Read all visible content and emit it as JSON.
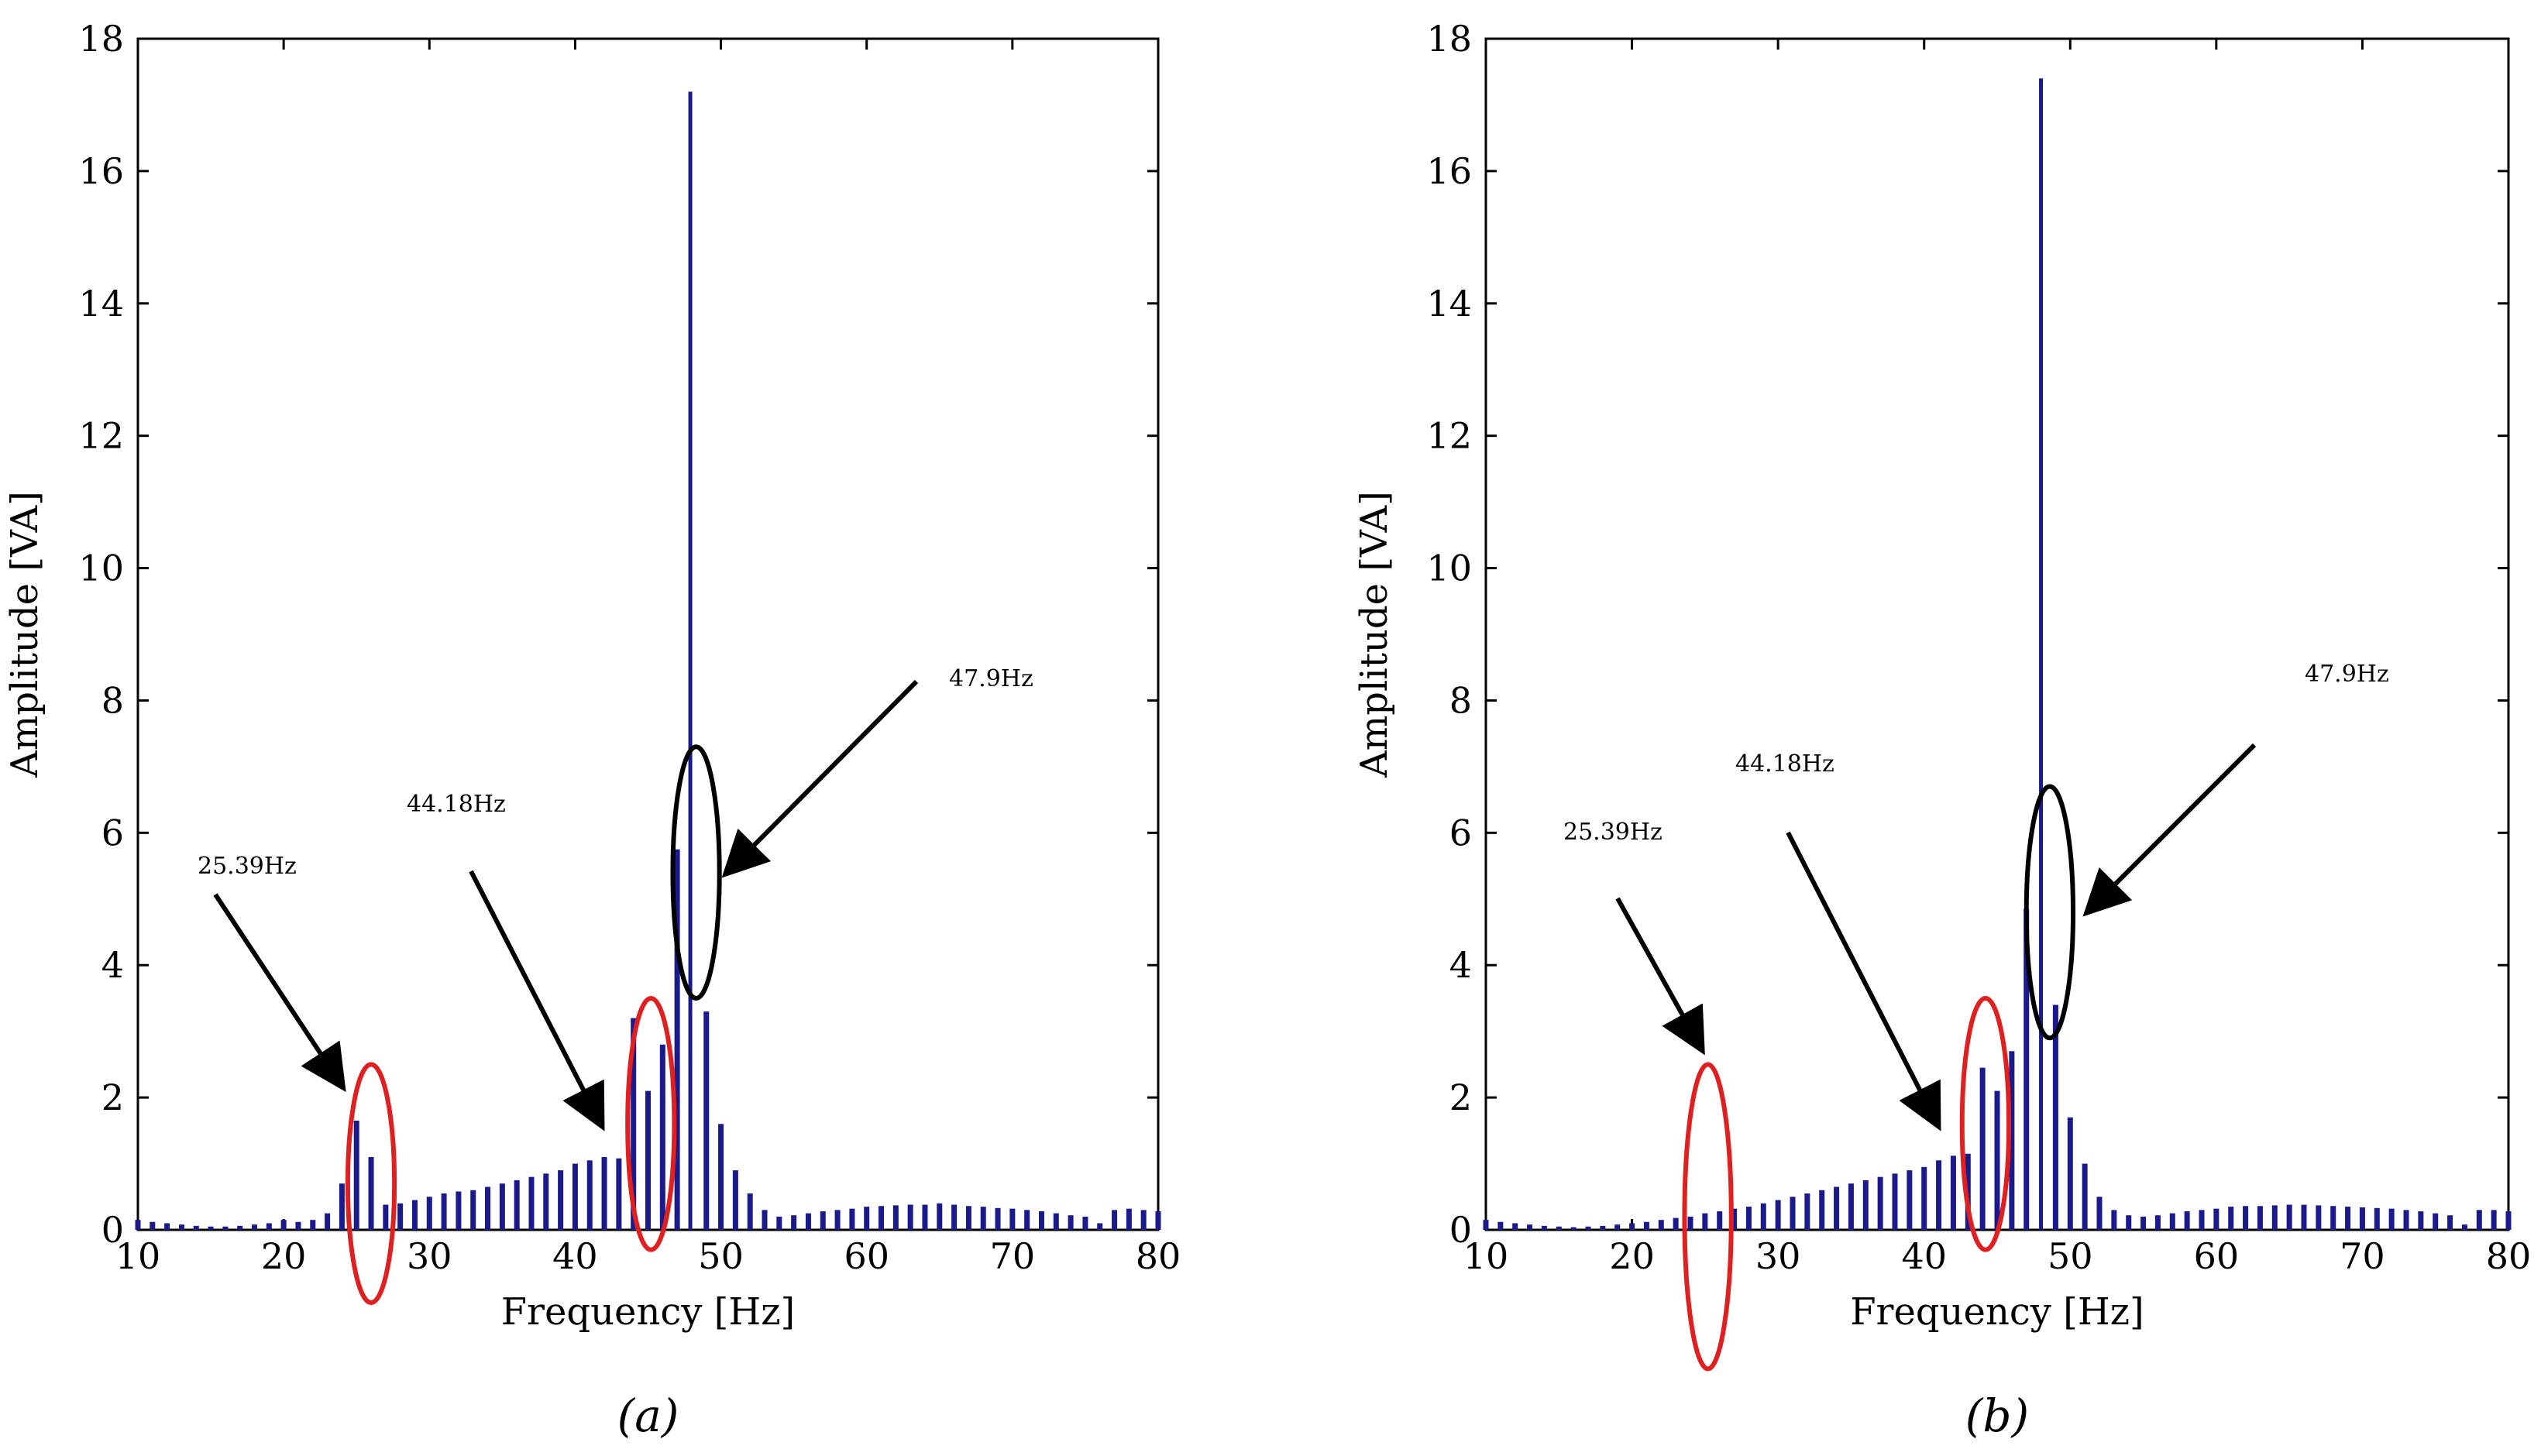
{
  "style": {
    "bar_color": "#1a1a8c",
    "red_ellipse": "#e02020",
    "black_ellipse": "#000000"
  },
  "chart_data": [
    {
      "type": "bar",
      "panel": "(a)",
      "xlabel": "Frequency [Hz]",
      "ylabel": "Amplitude [VA]",
      "xlim": [
        10,
        80
      ],
      "ylim": [
        0,
        18
      ],
      "xticks": [
        10,
        20,
        30,
        40,
        50,
        60,
        70,
        80
      ],
      "yticks": [
        0,
        2,
        4,
        6,
        8,
        10,
        12,
        14,
        16,
        18
      ],
      "x": [
        10,
        11,
        12,
        13,
        14,
        15,
        16,
        17,
        18,
        19,
        20,
        21,
        22,
        23,
        24,
        25,
        26,
        27,
        28,
        29,
        30,
        31,
        32,
        33,
        34,
        35,
        36,
        37,
        38,
        39,
        40,
        41,
        42,
        43,
        44,
        45,
        46,
        47,
        47.9,
        49,
        50,
        51,
        52,
        53,
        54,
        55,
        56,
        57,
        58,
        59,
        60,
        61,
        62,
        63,
        64,
        65,
        66,
        67,
        68,
        69,
        70,
        71,
        72,
        73,
        74,
        75,
        76,
        77,
        78,
        79,
        80
      ],
      "values": [
        0.15,
        0.12,
        0.1,
        0.08,
        0.06,
        0.05,
        0.05,
        0.06,
        0.08,
        0.1,
        0.15,
        0.12,
        0.15,
        0.25,
        0.7,
        1.65,
        1.1,
        0.38,
        0.4,
        0.45,
        0.5,
        0.55,
        0.58,
        0.6,
        0.65,
        0.7,
        0.75,
        0.8,
        0.85,
        0.9,
        1.0,
        1.05,
        1.1,
        1.08,
        3.2,
        2.1,
        2.8,
        5.75,
        17.2,
        3.3,
        1.6,
        0.9,
        0.55,
        0.3,
        0.2,
        0.22,
        0.25,
        0.28,
        0.3,
        0.32,
        0.35,
        0.36,
        0.37,
        0.38,
        0.38,
        0.4,
        0.38,
        0.36,
        0.35,
        0.33,
        0.32,
        0.3,
        0.28,
        0.25,
        0.22,
        0.2,
        0.1,
        0.3,
        0.32,
        0.3,
        0.28
      ],
      "annotations": [
        {
          "label": "25.39Hz",
          "ellipse_color": "red",
          "center": [
            26,
            0.7
          ],
          "radius": [
            1.6,
            1.8
          ]
        },
        {
          "label": "44.18Hz",
          "ellipse_color": "red",
          "center": [
            45.2,
            1.6
          ],
          "radius": [
            1.6,
            1.9
          ]
        },
        {
          "label": "47.9Hz",
          "ellipse_color": "black",
          "center": [
            48.3,
            5.4
          ],
          "radius": [
            1.6,
            1.9
          ]
        }
      ]
    },
    {
      "type": "bar",
      "panel": "(b)",
      "xlabel": "Frequency [Hz]",
      "ylabel": "Amplitude [VA]",
      "xlim": [
        10,
        80
      ],
      "ylim": [
        0,
        18
      ],
      "xticks": [
        10,
        20,
        30,
        40,
        50,
        60,
        70,
        80
      ],
      "yticks": [
        0,
        2,
        4,
        6,
        8,
        10,
        12,
        14,
        16,
        18
      ],
      "x": [
        10,
        11,
        12,
        13,
        14,
        15,
        16,
        17,
        18,
        19,
        20,
        21,
        22,
        23,
        24,
        25,
        26,
        27,
        28,
        29,
        30,
        31,
        32,
        33,
        34,
        35,
        36,
        37,
        38,
        39,
        40,
        41,
        42,
        43,
        44,
        45,
        46,
        47,
        48,
        49,
        50,
        51,
        52,
        53,
        54,
        55,
        56,
        57,
        58,
        59,
        60,
        61,
        62,
        63,
        64,
        65,
        66,
        67,
        68,
        69,
        70,
        71,
        72,
        73,
        74,
        75,
        76,
        77,
        78,
        79,
        80
      ],
      "values": [
        0.15,
        0.12,
        0.1,
        0.08,
        0.06,
        0.05,
        0.04,
        0.05,
        0.06,
        0.08,
        0.1,
        0.12,
        0.15,
        0.18,
        0.2,
        0.25,
        0.28,
        0.32,
        0.35,
        0.4,
        0.45,
        0.5,
        0.55,
        0.6,
        0.65,
        0.7,
        0.75,
        0.8,
        0.85,
        0.9,
        0.95,
        1.05,
        1.12,
        1.15,
        2.45,
        2.1,
        2.7,
        4.85,
        17.4,
        3.4,
        1.7,
        1.0,
        0.5,
        0.3,
        0.22,
        0.2,
        0.22,
        0.25,
        0.28,
        0.3,
        0.32,
        0.35,
        0.36,
        0.36,
        0.37,
        0.38,
        0.38,
        0.37,
        0.36,
        0.35,
        0.34,
        0.33,
        0.32,
        0.3,
        0.28,
        0.25,
        0.22,
        0.08,
        0.3,
        0.3,
        0.28
      ],
      "annotations": [
        {
          "label": "25.39Hz",
          "ellipse_color": "red",
          "center": [
            25.2,
            0.2
          ],
          "radius": [
            1.6,
            2.3
          ]
        },
        {
          "label": "44.18Hz",
          "ellipse_color": "red",
          "center": [
            44.2,
            1.6
          ],
          "radius": [
            1.6,
            1.9
          ]
        },
        {
          "label": "47.9Hz",
          "ellipse_color": "black",
          "center": [
            48.6,
            4.8
          ],
          "radius": [
            1.6,
            1.9
          ]
        }
      ]
    }
  ]
}
